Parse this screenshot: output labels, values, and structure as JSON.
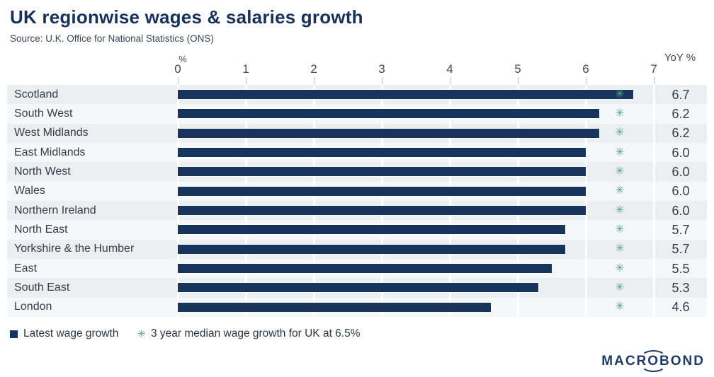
{
  "header": {
    "title": "UK regionwise wages & salaries growth",
    "source": "Source: U.K. Office for National Statistics (ONS)"
  },
  "chart_data": {
    "type": "bar",
    "orientation": "horizontal",
    "title": "UK regionwise wages & salaries growth",
    "source": "Source: U.K. Office for National Statistics (ONS)",
    "categories": [
      "Scotland",
      "South West",
      "West Midlands",
      "East Midlands",
      "North West",
      "Wales",
      "Northern Ireland",
      "North East",
      "Yorkshire & the Humber",
      "East",
      "South East",
      "London"
    ],
    "values": [
      6.7,
      6.2,
      6.2,
      6.0,
      6.0,
      6.0,
      6.0,
      5.7,
      5.7,
      5.5,
      5.3,
      4.6
    ],
    "value_labels": [
      "6.7",
      "6.2",
      "6.2",
      "6.0",
      "6.0",
      "6.0",
      "6.0",
      "5.7",
      "5.7",
      "5.5",
      "5.3",
      "4.6"
    ],
    "median_marker": {
      "value": 6.5,
      "glyph": "✳"
    },
    "xlabel": "%",
    "value_column_header": "YoY %",
    "x_ticks": [
      0,
      1,
      2,
      3,
      4,
      5,
      6,
      7
    ],
    "xlim": [
      0,
      7
    ],
    "grid": "white vertical lines at integer ticks",
    "legend_position": "bottom-left",
    "bar_color": "#17345d",
    "marker_color": "#56a78f",
    "row_band_colors": [
      "#eceef0",
      "#f6f7f8"
    ]
  },
  "legend": {
    "bar_label": "Latest wage growth",
    "marker_glyph": "✳",
    "marker_label": "3 year median wage growth for UK at 6.5%"
  },
  "logo": {
    "prefix": "MACR",
    "orbit_letter": "O",
    "suffix": "BOND"
  }
}
